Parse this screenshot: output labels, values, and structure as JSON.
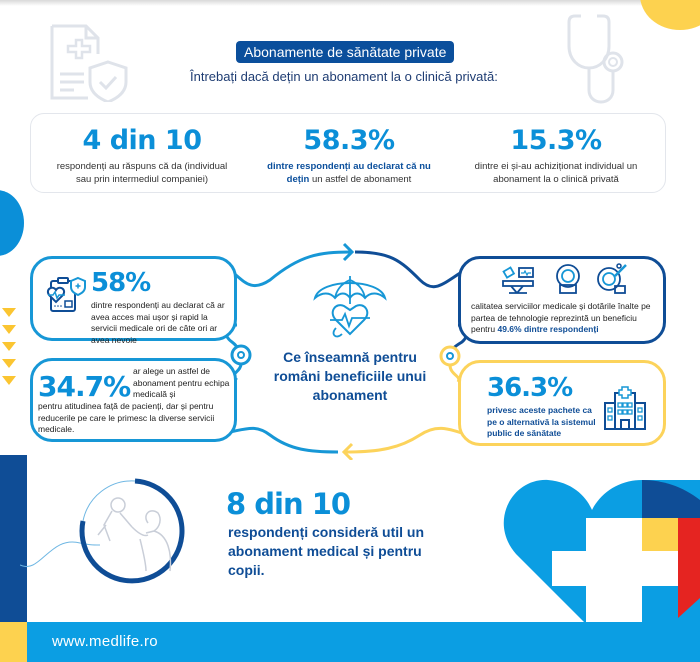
{
  "header": {
    "title": "Abonamente de sănătate private",
    "subtitle": "Întrebați dacă dețin un abonament la o clinică privată:"
  },
  "stats": [
    {
      "value": "4 din 10",
      "description": "respondenți au răspuns că da (individual sau prin intermediul companiei)"
    },
    {
      "value": "58.3%",
      "description_bold": "dintre respondenți au declarat că nu dețin",
      "description_rest": " un astfel de abonament"
    },
    {
      "value": "15.3%",
      "description": "dintre ei și-au achiziționat individual un abonament la o clinică privată"
    }
  ],
  "center": {
    "title": "Ce înseamnă pentru români beneficiile unui abonament",
    "icon": "umbrella-heart-icon"
  },
  "benefits": {
    "access": {
      "value": "58%",
      "description": "dintre respondenți au declarat că ar avea acces mai ușor și rapid la servicii medicale ori de câte ori ar avea nevoie",
      "icon": "medical-record-icon"
    },
    "staff": {
      "value": "34.7%",
      "description_top": "ar alege un astfel de abonament pentru echipa medicală și",
      "description_bottom": "pentru atitudinea față de pacienți, dar și pentru reducerile pe care le primesc la diverse servicii medicale."
    },
    "technology": {
      "description": "calitatea serviciilor medicale și dotările înalte pe partea de tehnologie reprezintă un beneficiu pentru",
      "highlight": "49.6% dintre respondenți",
      "icons": [
        "hospital-bed-icon",
        "mri-scanner-icon",
        "microscope-icon"
      ]
    },
    "alternative": {
      "value": "36.3%",
      "description": "privesc aceste pachete ca pe o alternativă la sistemul public de sănătate",
      "icon": "hospital-building-icon"
    }
  },
  "children": {
    "value": "8 din 10",
    "description": "respondenți consideră util un abonament medical și pentru copii.",
    "icon": "parent-child-icon"
  },
  "footer": {
    "url": "www.medlife.ro"
  },
  "colors": {
    "primary_blue": "#0b8fd8",
    "dark_blue": "#0f4d96",
    "yellow": "#fdd24f",
    "red": "#e52421",
    "footer_blue": "#0b9ee3"
  }
}
